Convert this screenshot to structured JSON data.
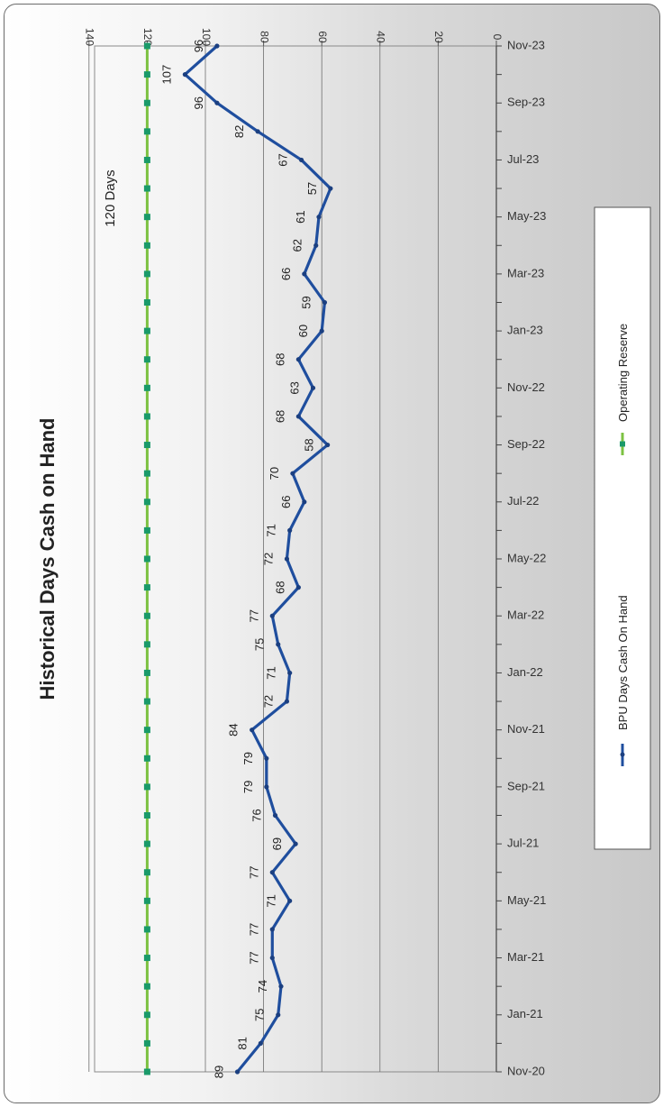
{
  "chart_data": {
    "type": "line",
    "title": "Historical Days Cash on Hand",
    "annotation": "120 Days",
    "ylim": [
      0,
      140
    ],
    "yticks": [
      0,
      20,
      40,
      60,
      80,
      100,
      120,
      140
    ],
    "x": [
      "Nov-20",
      "Dec-20",
      "Jan-21",
      "Feb-21",
      "Mar-21",
      "Apr-21",
      "May-21",
      "Jun-21",
      "Jul-21",
      "Aug-21",
      "Sep-21",
      "Oct-21",
      "Nov-21",
      "Dec-21",
      "Jan-22",
      "Feb-22",
      "Mar-22",
      "Apr-22",
      "May-22",
      "Jun-22",
      "Jul-22",
      "Aug-22",
      "Sep-22",
      "Oct-22",
      "Nov-22",
      "Dec-22",
      "Jan-23",
      "Feb-23",
      "Mar-23",
      "Apr-23",
      "May-23",
      "Jun-23",
      "Jul-23",
      "Aug-23",
      "Sep-23",
      "Oct-23",
      "Nov-23"
    ],
    "xtick_labels": [
      "Nov-20",
      "Jan-21",
      "Mar-21",
      "May-21",
      "Jul-21",
      "Sep-21",
      "Nov-21",
      "Jan-22",
      "Mar-22",
      "May-22",
      "Jul-22",
      "Sep-22",
      "Nov-22",
      "Jan-23",
      "Mar-23",
      "May-23",
      "Jul-23",
      "Sep-23",
      "Nov-23"
    ],
    "series": [
      {
        "name": "BPU Days Cash On Hand",
        "color": "#1f4e9e",
        "values": [
          89,
          81,
          75,
          74,
          77,
          77,
          71,
          77,
          69,
          76,
          79,
          79,
          84,
          72,
          71,
          75,
          77,
          68,
          72,
          71,
          66,
          70,
          58,
          68,
          63,
          68,
          60,
          59,
          66,
          62,
          61,
          57,
          67,
          82,
          96,
          107,
          96
        ]
      },
      {
        "name": "Operating Reserve",
        "color": "#7dc242",
        "marker_color": "#1a9a6a",
        "values": [
          120,
          120,
          120,
          120,
          120,
          120,
          120,
          120,
          120,
          120,
          120,
          120,
          120,
          120,
          120,
          120,
          120,
          120,
          120,
          120,
          120,
          120,
          120,
          120,
          120,
          120,
          120,
          120,
          120,
          120,
          120,
          120,
          120,
          120,
          120,
          120,
          120
        ]
      }
    ],
    "legend_position": "right",
    "orientation": "rotated 90 degrees clockwise",
    "grid": true
  }
}
